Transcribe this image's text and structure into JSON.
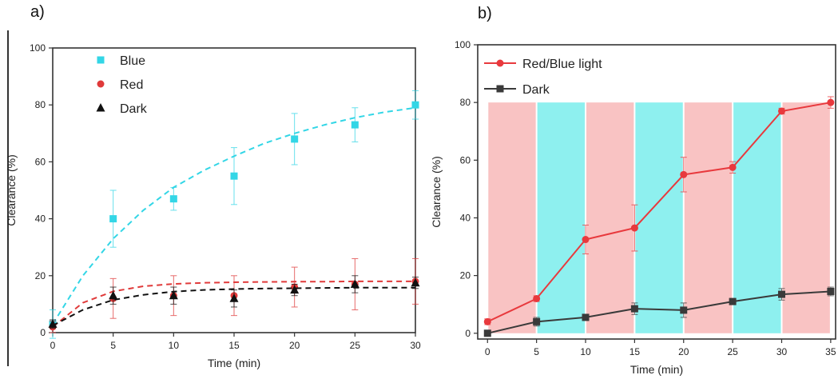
{
  "panels": {
    "a_label": "a)",
    "b_label": "b)"
  },
  "chart_data": [
    {
      "type": "scatter",
      "panel": "a",
      "xlabel": "Time (min)",
      "ylabel": "Clearance (%)",
      "xlim": [
        0,
        30
      ],
      "ylim": [
        0,
        100
      ],
      "xticks": [
        0,
        5,
        10,
        15,
        20,
        25,
        30
      ],
      "yticks": [
        0,
        20,
        40,
        60,
        80,
        100
      ],
      "legend_position": "top-left",
      "series": [
        {
          "name": "Blue",
          "color": "#33d6e6",
          "marker": "square",
          "x": [
            0,
            5,
            10,
            15,
            20,
            25,
            30
          ],
          "y": [
            3,
            40,
            47,
            55,
            68,
            73,
            80
          ],
          "err": [
            5,
            10,
            4,
            10,
            9,
            6,
            5
          ],
          "fit_x": [
            0,
            2.5,
            5,
            7.5,
            10,
            12.5,
            15,
            17.5,
            20,
            22.5,
            25,
            27.5,
            30
          ],
          "fit_y": [
            3,
            20,
            33,
            43,
            51,
            57,
            62,
            66.5,
            70,
            73,
            75.5,
            77.5,
            79
          ]
        },
        {
          "name": "Red",
          "color": "#e03a3a",
          "marker": "circle",
          "x": [
            0,
            5,
            10,
            15,
            20,
            25,
            30
          ],
          "y": [
            2,
            12,
            13,
            13,
            16,
            17,
            18
          ],
          "err": [
            2,
            7,
            7,
            7,
            7,
            9,
            8
          ],
          "fit_x": [
            0,
            2.5,
            5,
            7.5,
            10,
            12.5,
            15,
            17.5,
            20,
            22.5,
            25,
            27.5,
            30
          ],
          "fit_y": [
            2,
            10.5,
            14.5,
            16.3,
            17.1,
            17.5,
            17.7,
            17.8,
            17.9,
            17.9,
            18,
            18,
            18
          ]
        },
        {
          "name": "Dark",
          "color": "#111111",
          "marker": "triangle",
          "x": [
            0,
            5,
            10,
            15,
            20,
            25,
            30
          ],
          "y": [
            3,
            13,
            13,
            12,
            15,
            17,
            17.5
          ],
          "err": [
            1.5,
            3,
            3,
            3,
            2,
            3,
            2
          ],
          "fit_x": [
            0,
            2.5,
            5,
            7.5,
            10,
            12.5,
            15,
            17.5,
            20,
            22.5,
            25,
            27.5,
            30
          ],
          "fit_y": [
            2.5,
            8,
            11.5,
            13.3,
            14.4,
            15,
            15.3,
            15.5,
            15.6,
            15.7,
            15.8,
            15.8,
            15.8
          ]
        }
      ]
    },
    {
      "type": "line",
      "panel": "b",
      "xlabel": "Time (min)",
      "ylabel": "Clearance (%)",
      "xlim": [
        -1,
        35.5
      ],
      "ylim": [
        -2,
        100
      ],
      "xticks": [
        0,
        5,
        10,
        15,
        20,
        25,
        30,
        35
      ],
      "yticks": [
        0,
        20,
        40,
        60,
        80,
        100
      ],
      "legend_position": "top-left",
      "bands": [
        {
          "from": 0,
          "to": 5,
          "color": "#f9c3c3"
        },
        {
          "from": 5,
          "to": 10,
          "color": "#8ef0ef"
        },
        {
          "from": 10,
          "to": 15,
          "color": "#f9c3c3"
        },
        {
          "from": 15,
          "to": 20,
          "color": "#8ef0ef"
        },
        {
          "from": 20,
          "to": 25,
          "color": "#f9c3c3"
        },
        {
          "from": 25,
          "to": 30,
          "color": "#8ef0ef"
        },
        {
          "from": 30,
          "to": 35,
          "color": "#f9c3c3"
        }
      ],
      "band_top": 80,
      "series": [
        {
          "name": "Red/Blue light",
          "color": "#e8393d",
          "marker": "circle",
          "x": [
            0,
            5,
            10,
            15,
            20,
            25,
            30,
            35
          ],
          "y": [
            4,
            12,
            32.5,
            36.5,
            55,
            57.5,
            77,
            80
          ],
          "err": [
            1,
            1,
            5,
            8,
            6,
            2,
            1,
            2
          ]
        },
        {
          "name": "Dark",
          "color": "#3a3a3a",
          "marker": "square",
          "x": [
            0,
            5,
            10,
            15,
            20,
            25,
            30,
            35
          ],
          "y": [
            0,
            4,
            5.5,
            8.5,
            8,
            11,
            13.5,
            14.5
          ],
          "err": [
            0.5,
            1.5,
            1,
            2,
            2.5,
            1,
            2,
            1.5
          ]
        }
      ]
    }
  ]
}
